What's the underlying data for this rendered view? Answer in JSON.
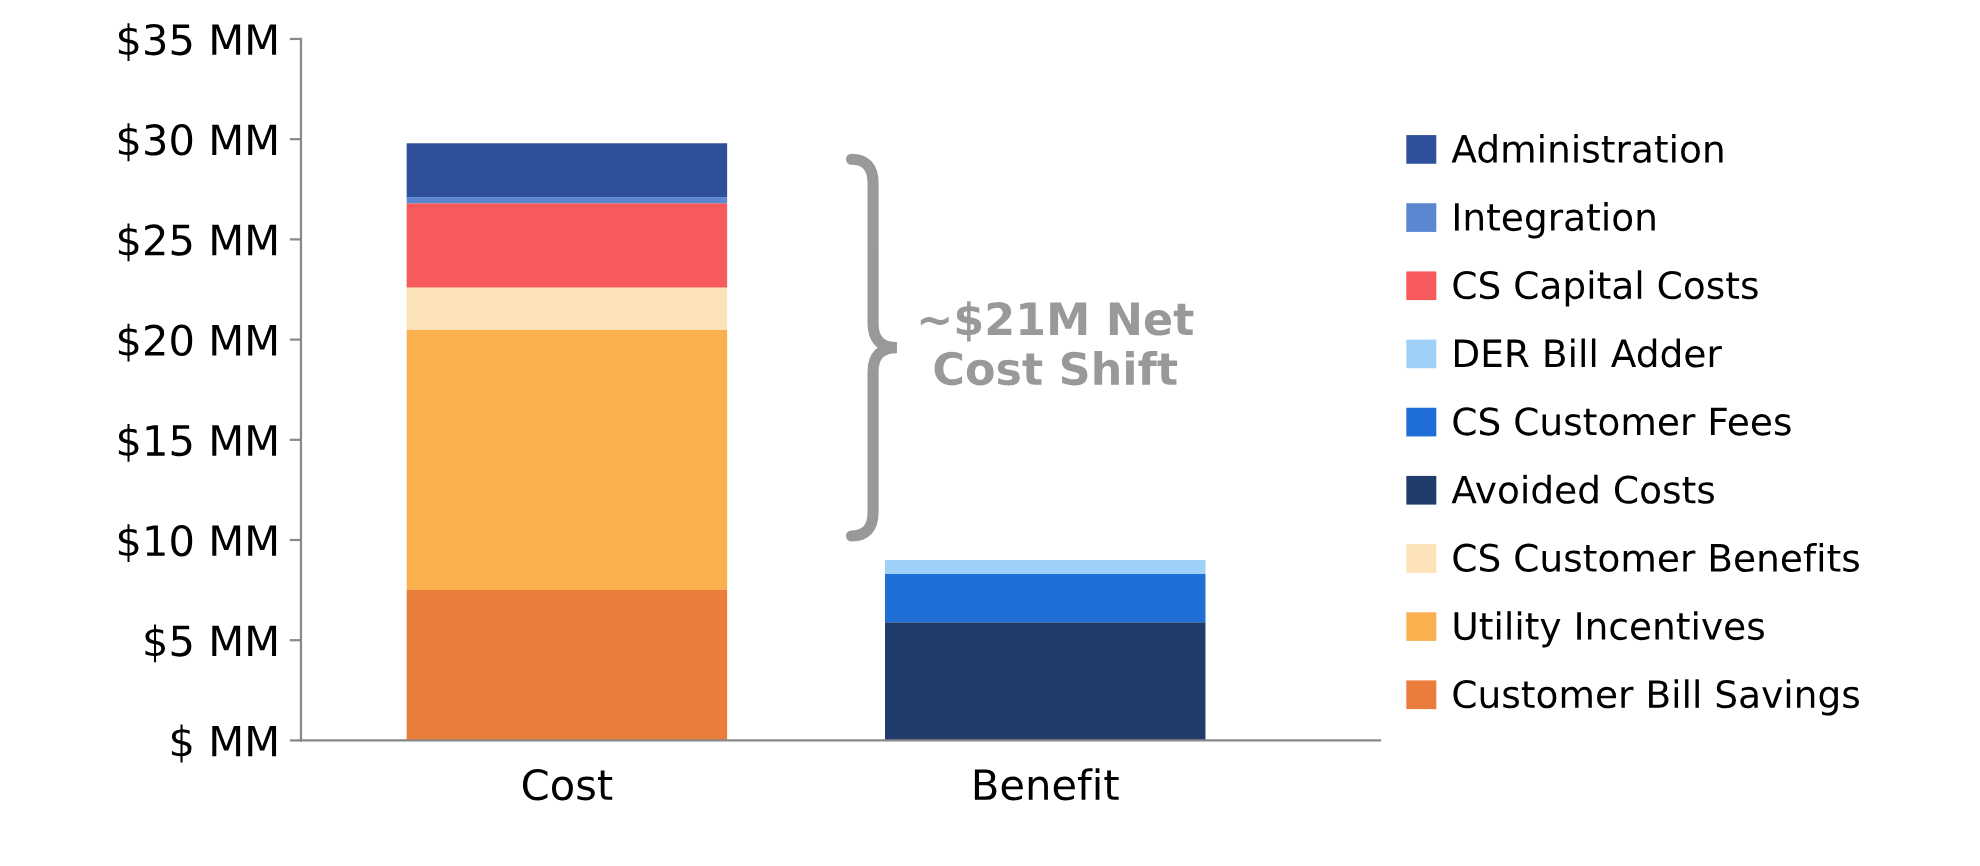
{
  "chart_data": {
    "type": "bar",
    "stacked": true,
    "categories": [
      "Cost",
      "Benefit"
    ],
    "series": [
      {
        "name": "Customer Bill Savings",
        "color": "#ea7c3c",
        "values": [
          7.5,
          null
        ]
      },
      {
        "name": "Utility Incentives",
        "color": "#fbb050",
        "values": [
          13.0,
          null
        ]
      },
      {
        "name": "CS Customer Benefits",
        "color": "#fde3b8",
        "values": [
          2.1,
          null
        ]
      },
      {
        "name": "Avoided Costs",
        "color": "#1f3c6a",
        "values": [
          null,
          5.9
        ]
      },
      {
        "name": "CS Customer Fees",
        "color": "#1f6fd6",
        "values": [
          null,
          2.4
        ]
      },
      {
        "name": "DER Bill Adder",
        "color": "#9fd0f8",
        "values": [
          null,
          0.7
        ]
      },
      {
        "name": "CS Capital Costs",
        "color": "#f65a5a",
        "values": [
          4.2,
          null
        ]
      },
      {
        "name": "Integration",
        "color": "#5b86d0",
        "values": [
          0.3,
          null
        ]
      },
      {
        "name": "Administration",
        "color": "#2e4f9a",
        "values": [
          2.7,
          null
        ]
      }
    ],
    "ylim": [
      0,
      35
    ],
    "yticks": [
      {
        "value": 0,
        "label": "$ MM"
      },
      {
        "value": 5,
        "label": "$5 MM"
      },
      {
        "value": 10,
        "label": "$10 MM"
      },
      {
        "value": 15,
        "label": "$15 MM"
      },
      {
        "value": 20,
        "label": "$20 MM"
      },
      {
        "value": 25,
        "label": "$25 MM"
      },
      {
        "value": 30,
        "label": "$30 MM"
      },
      {
        "value": 35,
        "label": "$35 MM"
      }
    ],
    "annotations": [
      "~$21M Net\nCost Shift"
    ],
    "legend": "right"
  }
}
